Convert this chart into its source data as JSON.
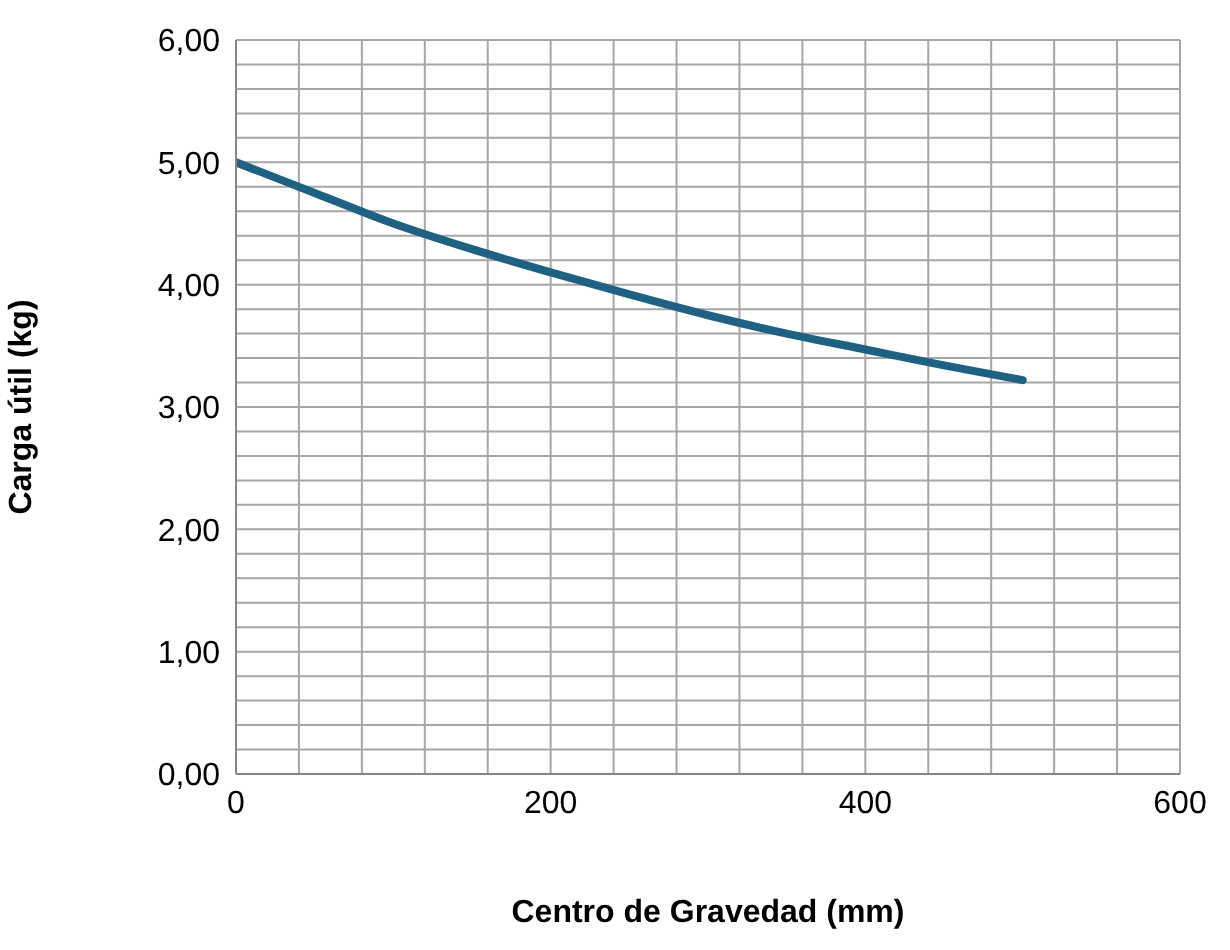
{
  "chart_data": {
    "type": "line",
    "xlabel": "Centro de Gravedad (mm)",
    "ylabel": "Carga útil (kg)",
    "x": [
      0,
      50,
      100,
      150,
      200,
      250,
      300,
      350,
      400,
      450,
      500
    ],
    "series": [
      {
        "color": "#1f6183",
        "values": [
          5.0,
          4.75,
          4.5,
          4.29,
          4.1,
          3.92,
          3.75,
          3.6,
          3.47,
          3.34,
          3.22
        ]
      }
    ],
    "xlim": [
      0,
      600
    ],
    "xticks": [
      0,
      {
        "value": 40,
        "label": null
      },
      {
        "value": 80,
        "label": null
      },
      {
        "value": 120,
        "label": null
      },
      {
        "value": 160,
        "label": null
      },
      200,
      {
        "value": 240,
        "label": null
      },
      {
        "value": 280,
        "label": null
      },
      {
        "value": 320,
        "label": null
      },
      {
        "value": 360,
        "label": null
      },
      400,
      {
        "value": 440,
        "label": null
      },
      {
        "value": 480,
        "label": null
      },
      {
        "value": 520,
        "label": null
      },
      {
        "value": 560,
        "label": null
      },
      600
    ],
    "ylim": [
      0,
      6
    ],
    "yticks": [
      {
        "value": 0,
        "label": "0,00"
      },
      {
        "value": 0.2,
        "label": null
      },
      {
        "value": 0.4,
        "label": null
      },
      {
        "value": 0.6,
        "label": null
      },
      {
        "value": 0.8,
        "label": null
      },
      {
        "value": 1,
        "label": "1,00"
      },
      {
        "value": 1.2,
        "label": null
      },
      {
        "value": 1.4,
        "label": null
      },
      {
        "value": 1.6,
        "label": null
      },
      {
        "value": 1.8,
        "label": null
      },
      {
        "value": 2,
        "label": "2,00"
      },
      {
        "value": 2.2,
        "label": null
      },
      {
        "value": 2.4,
        "label": null
      },
      {
        "value": 2.6,
        "label": null
      },
      {
        "value": 2.8,
        "label": null
      },
      {
        "value": 3,
        "label": "3,00"
      },
      {
        "value": 3.2,
        "label": null
      },
      {
        "value": 3.4,
        "label": null
      },
      {
        "value": 3.6,
        "label": null
      },
      {
        "value": 3.8,
        "label": null
      },
      {
        "value": 4,
        "label": "4,00"
      },
      {
        "value": 4.2,
        "label": null
      },
      {
        "value": 4.4,
        "label": null
      },
      {
        "value": 4.6,
        "label": null
      },
      {
        "value": 4.8,
        "label": null
      },
      {
        "value": 5,
        "label": "5,00"
      },
      {
        "value": 5.2,
        "label": null
      },
      {
        "value": 5.4,
        "label": null
      },
      {
        "value": 5.6,
        "label": null
      },
      {
        "value": 5.8,
        "label": null
      },
      {
        "value": 6,
        "label": "6,00"
      }
    ],
    "grid": true,
    "legend": false,
    "marker": "none",
    "line_style": "solid"
  }
}
